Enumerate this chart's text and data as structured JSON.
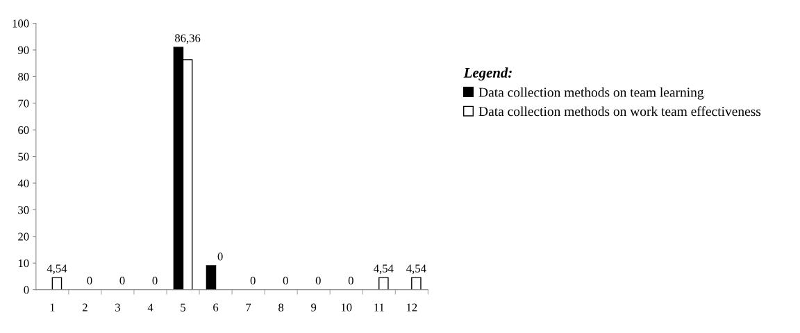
{
  "chart_data": {
    "type": "bar",
    "categories": [
      "1",
      "2",
      "3",
      "4",
      "5",
      "6",
      "7",
      "8",
      "9",
      "10",
      "11",
      "12"
    ],
    "series": [
      {
        "name": "Data collection methods on team learning",
        "color": "#000000",
        "values": [
          0,
          0,
          0,
          0,
          91,
          9,
          0,
          0,
          0,
          0,
          0,
          0
        ]
      },
      {
        "name": "Data collection methods on work team effectiveness",
        "color": "#ffffff",
        "values": [
          4.54,
          0,
          0,
          0,
          86.36,
          0,
          0,
          0,
          0,
          0,
          4.54,
          4.54
        ],
        "value_labels": [
          "4,54",
          "0",
          "0",
          "0",
          "86,36",
          "0",
          "0",
          "0",
          "0",
          "0",
          "4,54",
          "4,54"
        ]
      }
    ],
    "ylim": [
      0,
      100
    ],
    "yticks": [
      0,
      10,
      20,
      30,
      40,
      50,
      60,
      70,
      80,
      90,
      100
    ],
    "grid": false,
    "legend": "right",
    "legend_title": "Legend:"
  }
}
